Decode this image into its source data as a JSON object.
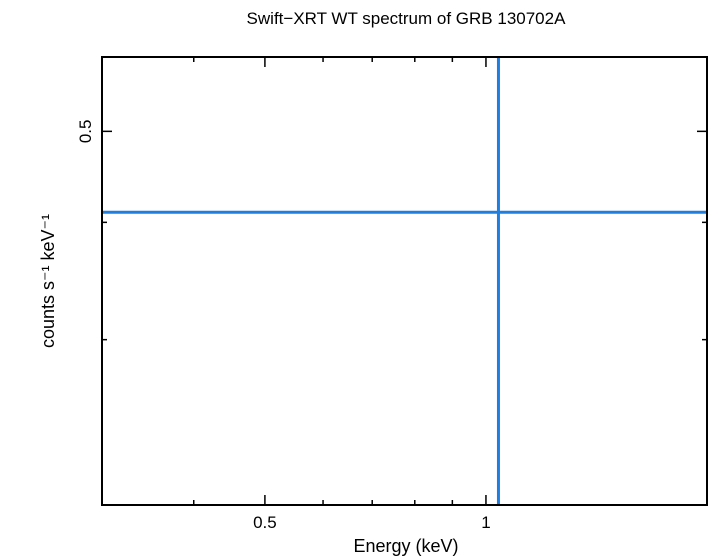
{
  "chart_data": {
    "type": "scatter",
    "title": "Swift−XRT WT spectrum of GRB 130702A",
    "xlabel": "Energy (keV)",
    "ylabel": "counts s⁻¹ keV⁻¹",
    "x_scale": "log",
    "y_scale": "log",
    "xlim": [
      0.3,
      2.0
    ],
    "ylim": [
      0.2,
      0.6
    ],
    "x_major_ticks": [
      {
        "value": 0.5,
        "label": "0.5"
      },
      {
        "value": 1,
        "label": "1"
      }
    ],
    "x_minor_ticks": [
      0.4,
      0.6,
      0.7,
      0.8,
      0.9,
      2.0
    ],
    "y_major_ticks": [
      {
        "value": 0.5,
        "label": "0.5"
      }
    ],
    "y_minor_ticks": [
      0.3,
      0.4
    ],
    "grid": false,
    "series": [
      {
        "color": "#1e7fe0",
        "points": [
          {
            "x": 1.04,
            "y": 0.41,
            "x_err_low": 0.74,
            "x_err_high": 0.96,
            "y_err_low": 0.21,
            "y_err_high": 0.19
          }
        ]
      }
    ]
  }
}
